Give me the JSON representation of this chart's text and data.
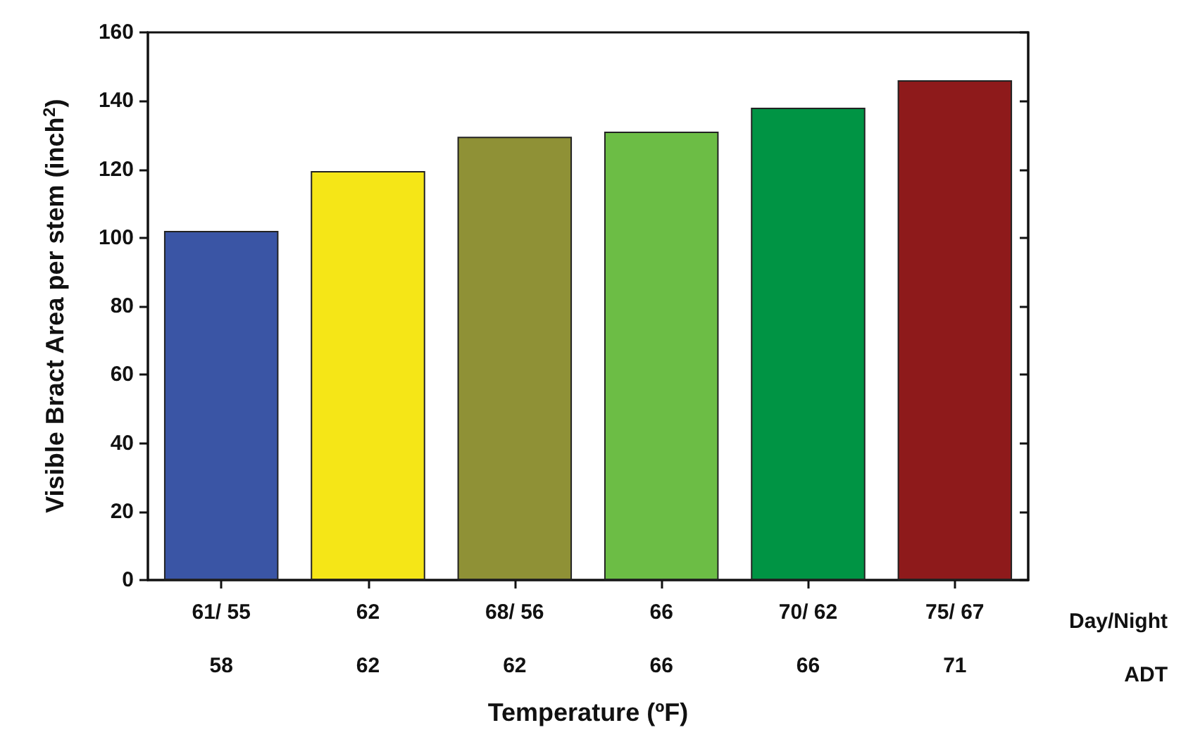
{
  "chart_data": {
    "type": "bar",
    "xlabel": "Temperature (ºF)",
    "ylabel": "Visible Bract Area per stem (inch$^{2}$)",
    "categories": [
      "61/ 55\n58",
      "62\n62",
      "68/ 56\n62",
      "66\n66",
      "70/ 62\n66",
      "75/ 67\n71"
    ],
    "values": [
      102,
      119.5,
      129.5,
      131,
      138,
      146
    ],
    "colors": [
      "#3a55a5",
      "#f5e617",
      "#8f9136",
      "#6cbd45",
      "#009444",
      "#8e1a1b"
    ],
    "ylim": [
      0,
      160
    ],
    "yticks": [
      0,
      20,
      40,
      60,
      80,
      100,
      120,
      140,
      160
    ],
    "grid": false,
    "annotations": [
      "Day/Night",
      "ADT"
    ]
  }
}
